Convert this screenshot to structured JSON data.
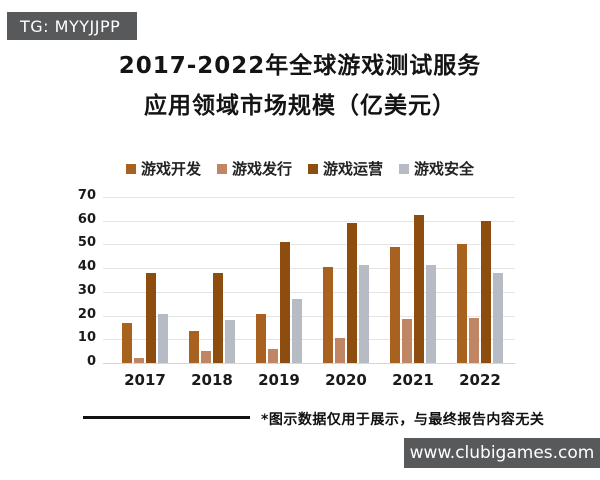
{
  "badge_tg": {
    "label": "TG: MYYJJPP"
  },
  "title": {
    "line1": "2017-2022年全球游戏测试服务",
    "line2": "应用领域市场规模（亿美元）"
  },
  "footnote": {
    "text": "*图示数据仅用于展示，与最终报告内容无关"
  },
  "watermark": {
    "label": "www.clubigames.com"
  },
  "colors": {
    "dev": "#A9611F",
    "pub": "#C08565",
    "ops": "#8C4D0F",
    "sec": "#B7BCC4",
    "badge_bg": "#58595B",
    "grid": "#E4E4E4"
  },
  "chart_data": {
    "type": "bar",
    "title": "2017-2022年全球游戏测试服务应用领域市场规模（亿美元）",
    "categories": [
      "2017",
      "2018",
      "2019",
      "2020",
      "2021",
      "2022"
    ],
    "series": [
      {
        "name": "游戏开发",
        "color_key": "dev",
        "values": [
          17,
          13.5,
          20.5,
          40.5,
          49,
          50
        ]
      },
      {
        "name": "游戏发行",
        "color_key": "pub",
        "values": [
          2,
          5,
          6,
          10.5,
          18.5,
          19
        ]
      },
      {
        "name": "游戏运营",
        "color_key": "ops",
        "values": [
          38,
          38,
          51,
          59,
          62.5,
          60
        ]
      },
      {
        "name": "游戏安全",
        "color_key": "sec",
        "values": [
          20.5,
          18,
          27,
          41.5,
          41.5,
          38
        ]
      }
    ],
    "xlabel": "",
    "ylabel": "",
    "ylim": [
      0,
      70
    ],
    "yticks": [
      0,
      10,
      20,
      30,
      40,
      50,
      60,
      70
    ],
    "grid": true,
    "legend_position": "top"
  }
}
